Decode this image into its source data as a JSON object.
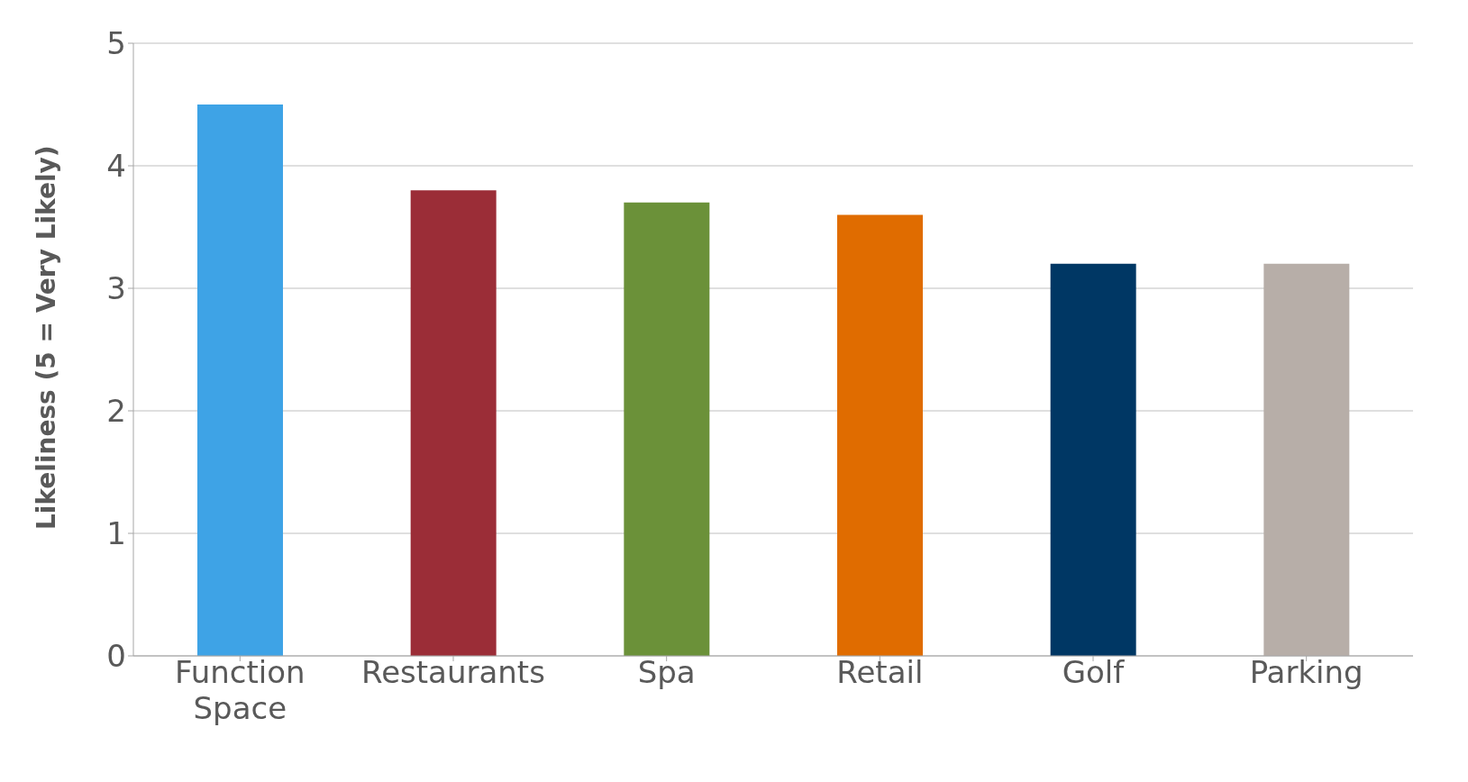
{
  "chart_data": {
    "type": "bar",
    "ylabel": "Likeliness (5 = Very Likely)",
    "categories": [
      "Function Space",
      "Restaurants",
      "Spa",
      "Retail",
      "Golf",
      "Parking"
    ],
    "values": [
      4.5,
      3.8,
      3.7,
      3.6,
      3.2,
      3.2
    ],
    "colors": [
      "#3ea3e6",
      "#9b2d37",
      "#6b9139",
      "#e06c00",
      "#003764",
      "#b7aea8"
    ],
    "ylim": [
      0,
      5
    ],
    "yticks": [
      0,
      1,
      2,
      3,
      4,
      5
    ],
    "grid": "y",
    "legend": false
  }
}
